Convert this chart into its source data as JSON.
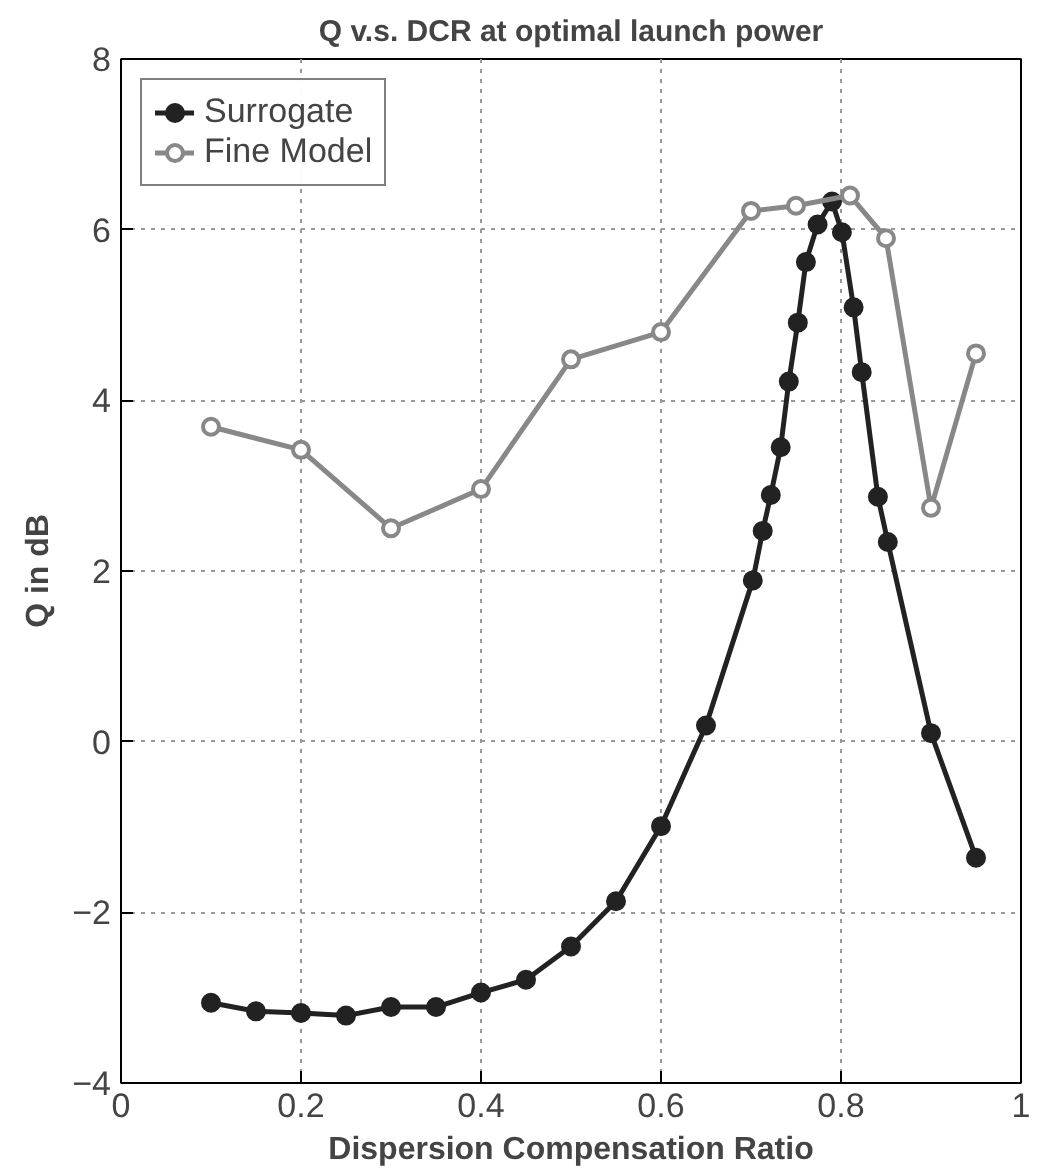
{
  "chart_data": {
    "type": "line",
    "title": "Q v.s. DCR at optimal launch power",
    "xlabel": "Dispersion Compensation Ratio",
    "ylabel": "Q in dB",
    "xlim": [
      0,
      1
    ],
    "ylim": [
      -4,
      8
    ],
    "xticks": [
      0,
      0.2,
      0.4,
      0.6,
      0.8,
      1
    ],
    "yticks": [
      -4,
      -2,
      0,
      2,
      4,
      6,
      8
    ],
    "grid": true,
    "legend": "top left",
    "marker": "circle",
    "line_style": "solid",
    "series": [
      {
        "name": "Surrogate",
        "color": "#222222",
        "x": [
          0.1,
          0.15,
          0.2,
          0.25,
          0.3,
          0.35,
          0.4,
          0.45,
          0.5,
          0.55,
          0.6,
          0.65,
          0.702,
          0.713,
          0.722,
          0.733,
          0.742,
          0.752,
          0.761,
          0.774,
          0.79,
          0.801,
          0.814,
          0.823,
          0.841,
          0.852,
          0.9,
          0.95
        ],
        "values": [
          -3.06,
          -3.16,
          -3.18,
          -3.21,
          -3.11,
          -3.11,
          -2.94,
          -2.79,
          -2.4,
          -1.87,
          -0.99,
          0.19,
          1.89,
          2.47,
          2.89,
          3.45,
          4.22,
          4.91,
          5.62,
          6.06,
          6.33,
          5.97,
          5.09,
          4.33,
          2.87,
          2.34,
          0.1,
          -1.36
        ]
      },
      {
        "name": "Fine Model",
        "color": "#888888",
        "x": [
          0.1,
          0.2,
          0.3,
          0.4,
          0.5,
          0.6,
          0.7,
          0.75,
          0.81,
          0.85,
          0.9,
          0.95
        ],
        "values": [
          3.69,
          3.42,
          2.5,
          2.96,
          4.48,
          4.8,
          6.22,
          6.28,
          6.4,
          5.9,
          2.74,
          4.55
        ]
      }
    ]
  }
}
